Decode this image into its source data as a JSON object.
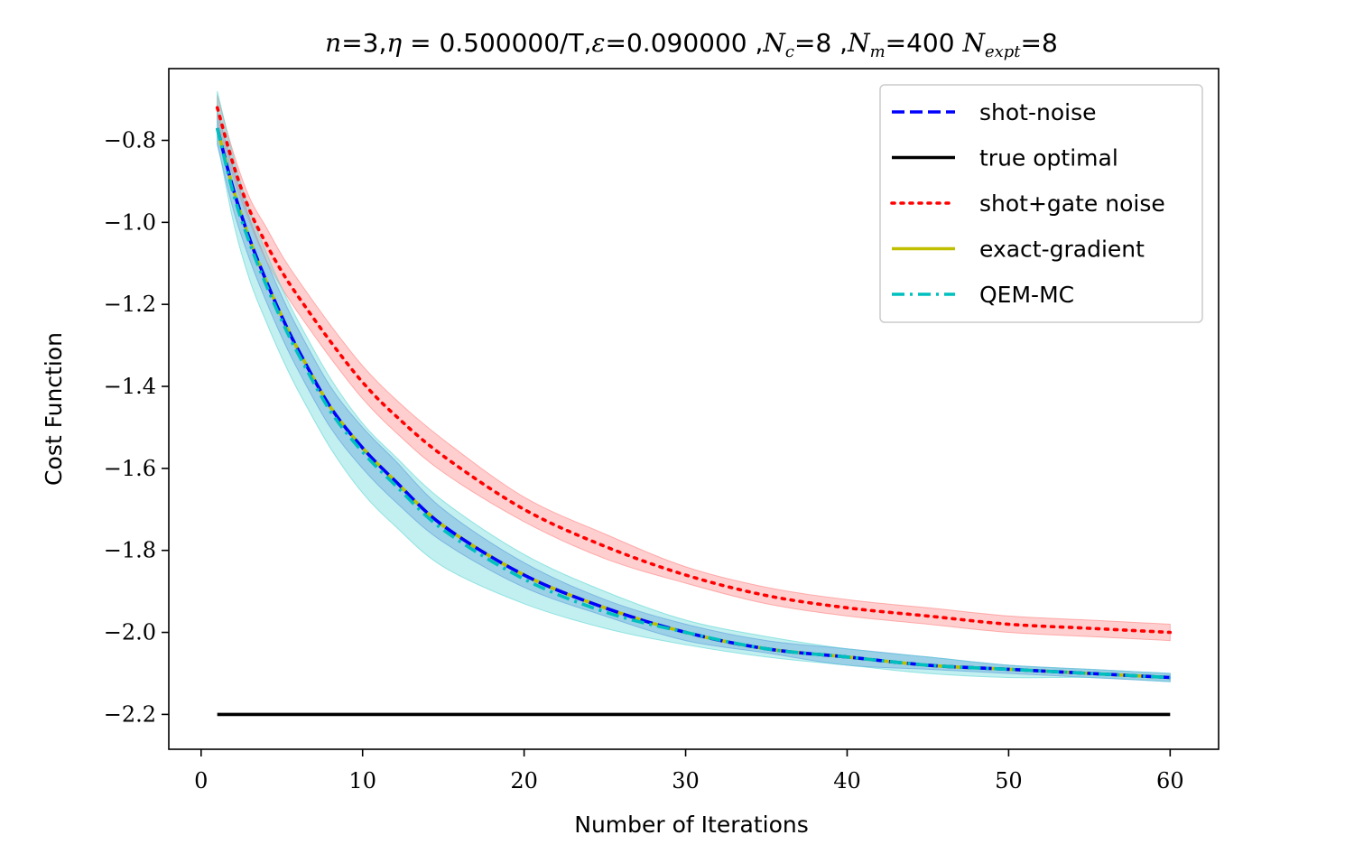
{
  "chart_data": {
    "type": "line",
    "title": "n=3,η = 0.500000/T,ε=0.090000 ,N_c=8 ,N_m=400 N_expt=8",
    "title_parts": {
      "n": "n",
      "n_val": "=3,",
      "eta": "η",
      "eta_val": " = 0.500000/T,",
      "eps": "ε",
      "eps_val": "=0.090000 ,",
      "nc": "N",
      "nc_sub": "c",
      "nc_val": "=8 ,",
      "nm": "N",
      "nm_sub": "m",
      "nm_val": "=400 ",
      "ne": "N",
      "ne_sub": "expt",
      "ne_val": "=8"
    },
    "xlabel": "Number of Iterations",
    "ylabel": "Cost Function",
    "xlim": [
      -2,
      63
    ],
    "ylim": [
      -2.285,
      -0.625
    ],
    "xticks": [
      0,
      10,
      20,
      30,
      40,
      50,
      60
    ],
    "xtick_labels": [
      "0",
      "10",
      "20",
      "30",
      "40",
      "50",
      "60"
    ],
    "yticks": [
      -0.8,
      -1.0,
      -1.2,
      -1.4,
      -1.6,
      -1.8,
      -2.0,
      -2.2
    ],
    "ytick_labels": [
      "−0.8",
      "−1.0",
      "−1.2",
      "−1.4",
      "−1.6",
      "−1.8",
      "−2.0",
      "−2.2"
    ],
    "legend_position": "top-right",
    "x": [
      1,
      2,
      3,
      4,
      5,
      6,
      8,
      10,
      12,
      15,
      20,
      25,
      30,
      35,
      40,
      45,
      50,
      55,
      60
    ],
    "series": [
      {
        "name": "shot-noise",
        "color": "#0000ff",
        "style": "dashed",
        "values": [
          -0.77,
          -0.92,
          -1.04,
          -1.14,
          -1.23,
          -1.31,
          -1.45,
          -1.55,
          -1.63,
          -1.74,
          -1.86,
          -1.94,
          -2.0,
          -2.04,
          -2.06,
          -2.08,
          -2.09,
          -2.1,
          -2.11
        ],
        "band_lower": [
          -0.81,
          -0.97,
          -1.09,
          -1.19,
          -1.28,
          -1.36,
          -1.5,
          -1.6,
          -1.68,
          -1.78,
          -1.89,
          -1.96,
          -2.02,
          -2.05,
          -2.08,
          -2.09,
          -2.1,
          -2.11,
          -2.12
        ],
        "band_upper": [
          -0.73,
          -0.87,
          -0.99,
          -1.09,
          -1.18,
          -1.26,
          -1.4,
          -1.5,
          -1.58,
          -1.7,
          -1.83,
          -1.92,
          -1.98,
          -2.02,
          -2.04,
          -2.06,
          -2.08,
          -2.09,
          -2.1
        ],
        "band_color": "#5b7fe0"
      },
      {
        "name": "true optimal",
        "color": "#000000",
        "style": "solid",
        "values": [
          -2.2,
          -2.2,
          -2.2,
          -2.2,
          -2.2,
          -2.2,
          -2.2,
          -2.2,
          -2.2,
          -2.2,
          -2.2,
          -2.2,
          -2.2,
          -2.2,
          -2.2,
          -2.2,
          -2.2,
          -2.2,
          -2.2
        ]
      },
      {
        "name": "shot+gate noise",
        "color": "#ff0000",
        "style": "dotted",
        "values": [
          -0.72,
          -0.86,
          -0.97,
          -1.05,
          -1.12,
          -1.18,
          -1.29,
          -1.39,
          -1.47,
          -1.57,
          -1.7,
          -1.79,
          -1.86,
          -1.91,
          -1.94,
          -1.96,
          -1.98,
          -1.99,
          -2.0
        ],
        "band_lower": [
          -0.75,
          -0.89,
          -1.0,
          -1.09,
          -1.16,
          -1.22,
          -1.33,
          -1.43,
          -1.51,
          -1.61,
          -1.73,
          -1.82,
          -1.88,
          -1.93,
          -1.96,
          -1.98,
          -2.0,
          -2.01,
          -2.02
        ],
        "band_upper": [
          -0.69,
          -0.83,
          -0.94,
          -1.01,
          -1.08,
          -1.14,
          -1.25,
          -1.35,
          -1.43,
          -1.53,
          -1.67,
          -1.76,
          -1.84,
          -1.89,
          -1.92,
          -1.94,
          -1.96,
          -1.97,
          -1.98
        ],
        "band_color": "#ff8080"
      },
      {
        "name": "exact-gradient",
        "color": "#bfbf00",
        "style": "solid",
        "values": [
          -0.77,
          -0.92,
          -1.04,
          -1.14,
          -1.23,
          -1.31,
          -1.45,
          -1.55,
          -1.63,
          -1.74,
          -1.86,
          -1.94,
          -2.0,
          -2.04,
          -2.06,
          -2.08,
          -2.09,
          -2.1,
          -2.11
        ]
      },
      {
        "name": "QEM-MC",
        "color": "#00bfbf",
        "style": "dashdot",
        "values": [
          -0.77,
          -0.93,
          -1.05,
          -1.15,
          -1.24,
          -1.32,
          -1.46,
          -1.56,
          -1.64,
          -1.75,
          -1.87,
          -1.95,
          -2.0,
          -2.04,
          -2.06,
          -2.08,
          -2.09,
          -2.1,
          -2.11
        ],
        "band_lower": [
          -0.8,
          -1.0,
          -1.14,
          -1.24,
          -1.33,
          -1.41,
          -1.55,
          -1.66,
          -1.74,
          -1.84,
          -1.93,
          -1.99,
          -2.03,
          -2.06,
          -2.08,
          -2.1,
          -2.11,
          -2.11,
          -2.12
        ],
        "band_upper": [
          -0.68,
          -0.84,
          -0.97,
          -1.07,
          -1.16,
          -1.24,
          -1.38,
          -1.49,
          -1.57,
          -1.68,
          -1.81,
          -1.9,
          -1.97,
          -2.01,
          -2.04,
          -2.06,
          -2.08,
          -2.09,
          -2.1
        ],
        "band_color": "#5fd6d6"
      }
    ]
  }
}
